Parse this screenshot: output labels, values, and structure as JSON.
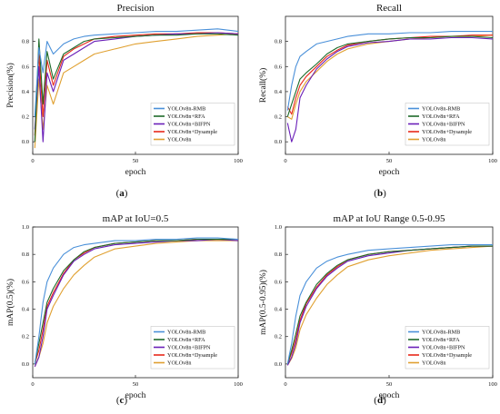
{
  "series_colors": {
    "YOLOv8n-RMB": "#4a90d9",
    "YOLOv8n+RFA": "#1e6b2a",
    "YOLOv8n+BIFPN": "#6a1fb8",
    "YOLOv8n+Dysample": "#e8281a",
    "YOLOv8n": "#e0a030"
  },
  "chart_data": [
    {
      "id": "a",
      "type": "line",
      "title": "Precision",
      "xlabel": "epoch",
      "ylabel": "Precision(%)",
      "xlim": [
        0,
        100
      ],
      "ylim": [
        -0.1,
        1.0
      ],
      "xticks": [
        "0",
        "50",
        "100"
      ],
      "yticks": [
        "0.0",
        "0.2",
        "0.4",
        "0.6",
        "0.8"
      ],
      "legend_position": "lower-right",
      "panel_label": "a",
      "series": [
        {
          "name": "YOLOv8n-RMB",
          "x": [
            1,
            3,
            5,
            7,
            10,
            15,
            20,
            25,
            30,
            40,
            50,
            60,
            70,
            80,
            90,
            100
          ],
          "y": [
            0.2,
            0.75,
            0.55,
            0.8,
            0.7,
            0.78,
            0.82,
            0.84,
            0.85,
            0.86,
            0.87,
            0.88,
            0.88,
            0.89,
            0.9,
            0.88
          ]
        },
        {
          "name": "YOLOv8n+RFA",
          "x": [
            1,
            3,
            5,
            7,
            10,
            15,
            20,
            25,
            30,
            40,
            50,
            60,
            70,
            80,
            90,
            100
          ],
          "y": [
            0.0,
            0.82,
            0.3,
            0.72,
            0.5,
            0.7,
            0.75,
            0.8,
            0.82,
            0.83,
            0.84,
            0.85,
            0.85,
            0.86,
            0.86,
            0.85
          ]
        },
        {
          "name": "YOLOv8n+BIFPN",
          "x": [
            1,
            3,
            5,
            7,
            10,
            15,
            20,
            25,
            30,
            40,
            50,
            60,
            70,
            80,
            90,
            100
          ],
          "y": [
            0.1,
            0.6,
            0.0,
            0.55,
            0.4,
            0.65,
            0.7,
            0.75,
            0.8,
            0.82,
            0.84,
            0.85,
            0.86,
            0.86,
            0.87,
            0.86
          ]
        },
        {
          "name": "YOLOv8n+Dysample",
          "x": [
            1,
            3,
            5,
            7,
            10,
            15,
            20,
            25,
            30,
            40,
            50,
            60,
            70,
            80,
            90,
            100
          ],
          "y": [
            0.05,
            0.7,
            0.2,
            0.65,
            0.45,
            0.68,
            0.74,
            0.78,
            0.82,
            0.84,
            0.85,
            0.86,
            0.86,
            0.87,
            0.87,
            0.86
          ]
        },
        {
          "name": "YOLOv8n",
          "x": [
            1,
            3,
            5,
            7,
            10,
            15,
            20,
            25,
            30,
            40,
            50,
            60,
            70,
            80,
            90,
            100
          ],
          "y": [
            -0.05,
            0.5,
            0.1,
            0.45,
            0.3,
            0.55,
            0.6,
            0.65,
            0.7,
            0.74,
            0.78,
            0.8,
            0.82,
            0.84,
            0.85,
            0.86
          ]
        }
      ]
    },
    {
      "id": "b",
      "type": "line",
      "title": "Recall",
      "xlabel": "epoch",
      "ylabel": "Recall(%)",
      "xlim": [
        0,
        100
      ],
      "ylim": [
        -0.1,
        1.0
      ],
      "xticks": [
        "0",
        "50",
        "100"
      ],
      "yticks": [
        "0.0",
        "0.2",
        "0.4",
        "0.6",
        "0.8"
      ],
      "legend_position": "lower-right",
      "panel_label": "b",
      "series": [
        {
          "name": "YOLOv8n-RMB",
          "x": [
            1,
            3,
            5,
            7,
            10,
            15,
            20,
            25,
            30,
            40,
            50,
            60,
            70,
            80,
            90,
            100
          ],
          "y": [
            0.25,
            0.45,
            0.6,
            0.68,
            0.72,
            0.78,
            0.8,
            0.82,
            0.84,
            0.86,
            0.86,
            0.87,
            0.87,
            0.88,
            0.88,
            0.88
          ]
        },
        {
          "name": "YOLOv8n+RFA",
          "x": [
            1,
            3,
            5,
            7,
            10,
            15,
            20,
            25,
            30,
            40,
            50,
            60,
            70,
            80,
            90,
            100
          ],
          "y": [
            0.2,
            0.3,
            0.4,
            0.5,
            0.55,
            0.62,
            0.7,
            0.75,
            0.78,
            0.8,
            0.82,
            0.83,
            0.83,
            0.84,
            0.84,
            0.83
          ]
        },
        {
          "name": "YOLOv8n+BIFPN",
          "x": [
            1,
            3,
            5,
            7,
            10,
            15,
            20,
            25,
            30,
            40,
            50,
            60,
            70,
            80,
            90,
            100
          ],
          "y": [
            0.15,
            0.0,
            0.1,
            0.35,
            0.45,
            0.58,
            0.66,
            0.72,
            0.76,
            0.79,
            0.8,
            0.82,
            0.82,
            0.83,
            0.83,
            0.82
          ]
        },
        {
          "name": "YOLOv8n+Dysample",
          "x": [
            1,
            3,
            5,
            7,
            10,
            15,
            20,
            25,
            30,
            40,
            50,
            60,
            70,
            80,
            90,
            100
          ],
          "y": [
            0.28,
            0.22,
            0.35,
            0.45,
            0.52,
            0.6,
            0.68,
            0.73,
            0.77,
            0.8,
            0.82,
            0.83,
            0.84,
            0.84,
            0.85,
            0.85
          ]
        },
        {
          "name": "YOLOv8n",
          "x": [
            1,
            3,
            5,
            7,
            10,
            15,
            20,
            25,
            30,
            40,
            50,
            60,
            70,
            80,
            90,
            100
          ],
          "y": [
            0.2,
            0.18,
            0.3,
            0.4,
            0.48,
            0.56,
            0.64,
            0.7,
            0.74,
            0.78,
            0.8,
            0.82,
            0.83,
            0.84,
            0.84,
            0.85
          ]
        }
      ]
    },
    {
      "id": "c",
      "type": "line",
      "title": "mAP at IoU=0.5",
      "xlabel": "epoch",
      "ylabel": "mAP(0.5)(%)",
      "xlim": [
        0,
        100
      ],
      "ylim": [
        -0.1,
        1.0
      ],
      "xticks": [
        "0",
        "50",
        "100"
      ],
      "yticks": [
        "0.0",
        "0.2",
        "0.4",
        "0.6",
        "0.8",
        "1.0"
      ],
      "legend_position": "lower-right",
      "panel_label": "c",
      "series": [
        {
          "name": "YOLOv8n-RMB",
          "x": [
            1,
            3,
            5,
            7,
            10,
            15,
            20,
            25,
            30,
            40,
            50,
            60,
            70,
            80,
            90,
            100
          ],
          "y": [
            0.0,
            0.2,
            0.45,
            0.6,
            0.7,
            0.8,
            0.85,
            0.87,
            0.88,
            0.9,
            0.9,
            0.91,
            0.91,
            0.92,
            0.92,
            0.91
          ]
        },
        {
          "name": "YOLOv8n+RFA",
          "x": [
            1,
            3,
            5,
            7,
            10,
            15,
            20,
            25,
            30,
            40,
            50,
            60,
            70,
            80,
            90,
            100
          ],
          "y": [
            0.0,
            0.15,
            0.3,
            0.45,
            0.55,
            0.68,
            0.76,
            0.82,
            0.85,
            0.88,
            0.89,
            0.9,
            0.9,
            0.91,
            0.91,
            0.91
          ]
        },
        {
          "name": "YOLOv8n+BIFPN",
          "x": [
            1,
            3,
            5,
            7,
            10,
            15,
            20,
            25,
            30,
            40,
            50,
            60,
            70,
            80,
            90,
            100
          ],
          "y": [
            -0.02,
            0.05,
            0.2,
            0.4,
            0.5,
            0.65,
            0.75,
            0.8,
            0.84,
            0.87,
            0.88,
            0.89,
            0.9,
            0.9,
            0.91,
            0.9
          ]
        },
        {
          "name": "YOLOv8n+Dysample",
          "x": [
            1,
            3,
            5,
            7,
            10,
            15,
            20,
            25,
            30,
            40,
            50,
            60,
            70,
            80,
            90,
            100
          ],
          "y": [
            0.0,
            0.1,
            0.25,
            0.42,
            0.52,
            0.66,
            0.76,
            0.81,
            0.85,
            0.88,
            0.89,
            0.9,
            0.9,
            0.91,
            0.91,
            0.91
          ]
        },
        {
          "name": "YOLOv8n",
          "x": [
            1,
            3,
            5,
            7,
            10,
            15,
            20,
            25,
            30,
            40,
            50,
            60,
            70,
            80,
            90,
            100
          ],
          "y": [
            -0.02,
            0.05,
            0.15,
            0.3,
            0.42,
            0.55,
            0.65,
            0.72,
            0.78,
            0.84,
            0.86,
            0.88,
            0.89,
            0.9,
            0.9,
            0.9
          ]
        }
      ]
    },
    {
      "id": "d",
      "type": "line",
      "title": "mAP at IoU Range 0.5-0.95",
      "xlabel": "epoch",
      "ylabel": "mAP(0.5-0.95)(%)",
      "xlim": [
        0,
        100
      ],
      "ylim": [
        -0.1,
        1.0
      ],
      "xticks": [
        "0",
        "50",
        "100"
      ],
      "yticks": [
        "0.0",
        "0.2",
        "0.4",
        "0.6",
        "0.8",
        "1.0"
      ],
      "legend_position": "lower-right",
      "panel_label": "d",
      "series": [
        {
          "name": "YOLOv8n-RMB",
          "x": [
            1,
            3,
            5,
            7,
            10,
            15,
            20,
            25,
            30,
            40,
            50,
            60,
            70,
            80,
            90,
            100
          ],
          "y": [
            0.0,
            0.15,
            0.35,
            0.5,
            0.6,
            0.7,
            0.75,
            0.78,
            0.8,
            0.83,
            0.84,
            0.85,
            0.86,
            0.87,
            0.87,
            0.87
          ]
        },
        {
          "name": "YOLOv8n+RFA",
          "x": [
            1,
            3,
            5,
            7,
            10,
            15,
            20,
            25,
            30,
            40,
            50,
            60,
            70,
            80,
            90,
            100
          ],
          "y": [
            0.0,
            0.1,
            0.22,
            0.35,
            0.45,
            0.58,
            0.66,
            0.72,
            0.76,
            0.8,
            0.82,
            0.83,
            0.84,
            0.85,
            0.86,
            0.86
          ]
        },
        {
          "name": "YOLOv8n+BIFPN",
          "x": [
            1,
            3,
            5,
            7,
            10,
            15,
            20,
            25,
            30,
            40,
            50,
            60,
            70,
            80,
            90,
            100
          ],
          "y": [
            -0.01,
            0.05,
            0.15,
            0.3,
            0.42,
            0.55,
            0.64,
            0.7,
            0.75,
            0.79,
            0.81,
            0.83,
            0.84,
            0.85,
            0.86,
            0.86
          ]
        },
        {
          "name": "YOLOv8n+Dysample",
          "x": [
            1,
            3,
            5,
            7,
            10,
            15,
            20,
            25,
            30,
            40,
            50,
            60,
            70,
            80,
            90,
            100
          ],
          "y": [
            0.0,
            0.08,
            0.18,
            0.32,
            0.44,
            0.56,
            0.65,
            0.71,
            0.76,
            0.8,
            0.82,
            0.83,
            0.84,
            0.85,
            0.86,
            0.86
          ]
        },
        {
          "name": "YOLOv8n",
          "x": [
            1,
            3,
            5,
            7,
            10,
            15,
            20,
            25,
            30,
            40,
            50,
            60,
            70,
            80,
            90,
            100
          ],
          "y": [
            -0.01,
            0.04,
            0.12,
            0.25,
            0.36,
            0.48,
            0.58,
            0.65,
            0.71,
            0.76,
            0.79,
            0.81,
            0.83,
            0.84,
            0.85,
            0.86
          ]
        }
      ]
    }
  ]
}
